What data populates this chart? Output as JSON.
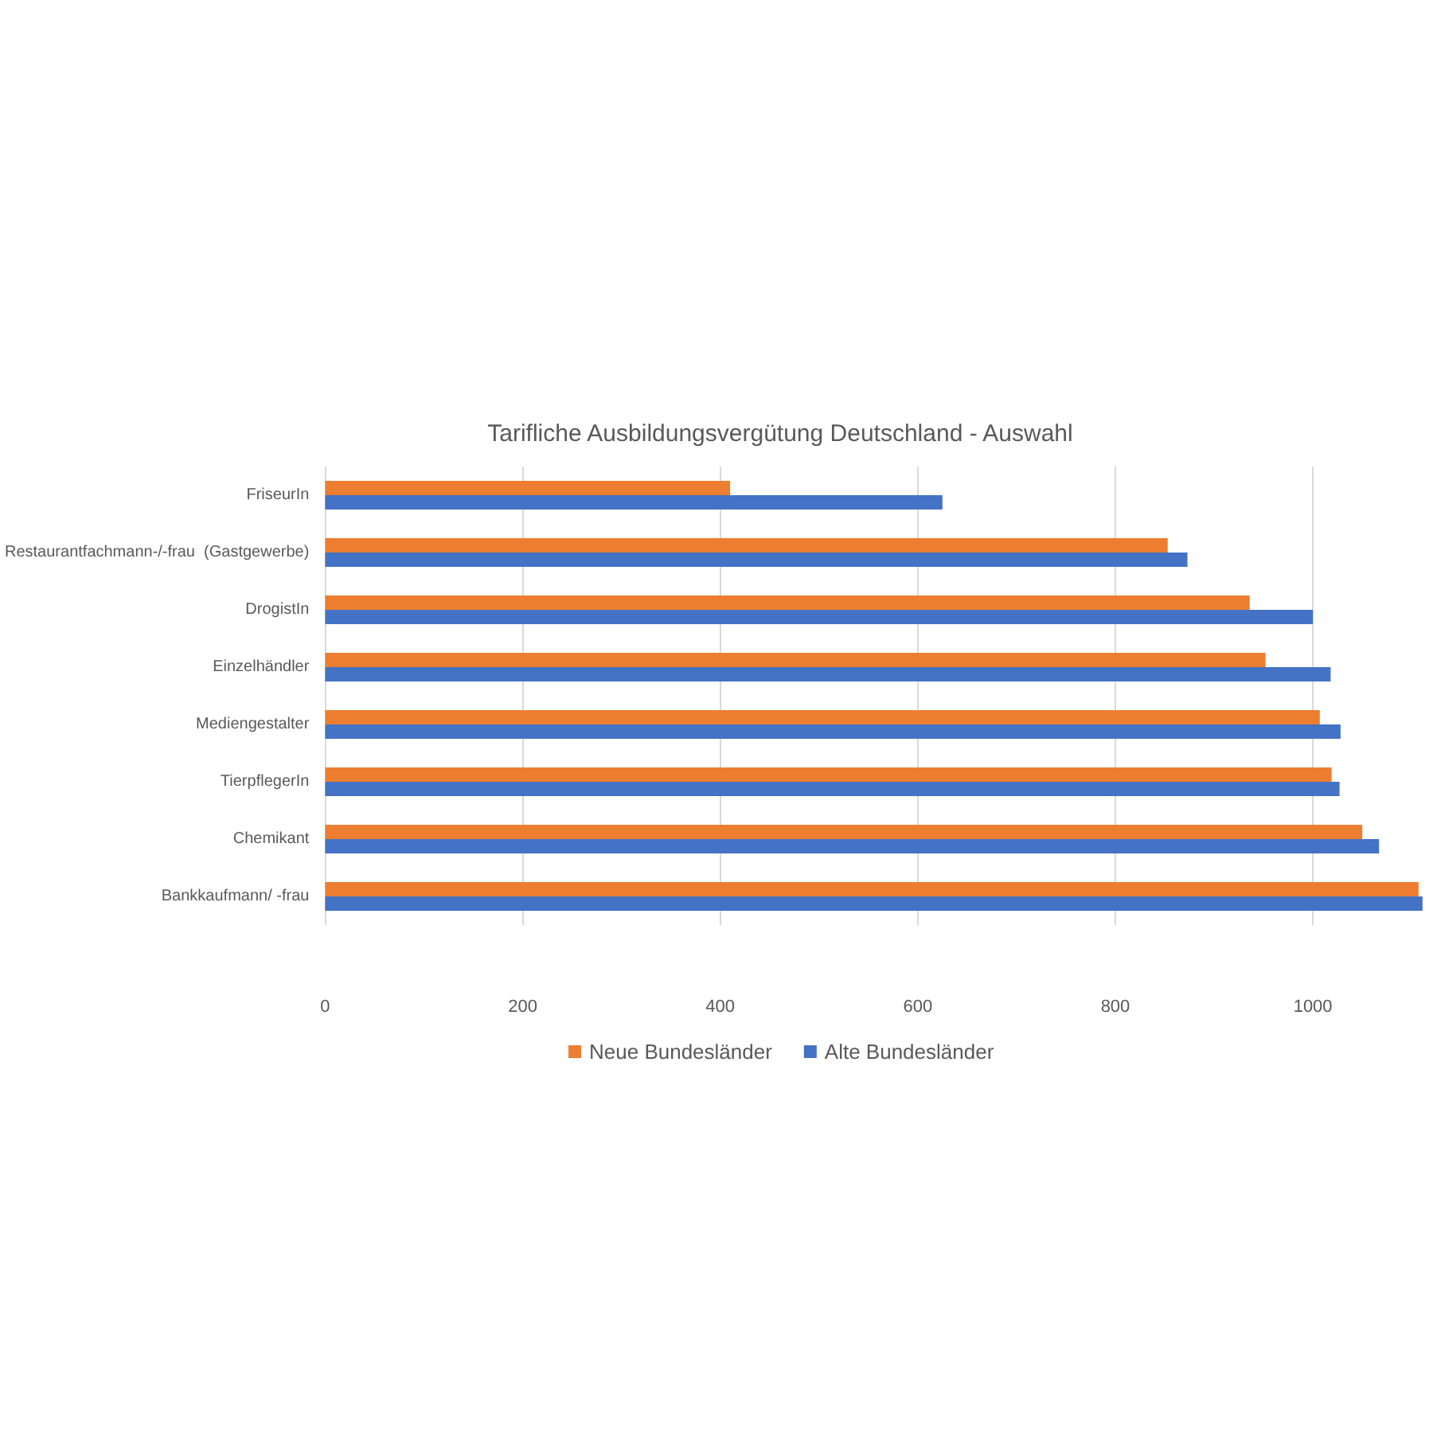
{
  "chart_data": {
    "type": "bar",
    "orientation": "horizontal",
    "title": "Tarifliche Ausbildungsvergütung Deutschland - Auswahl",
    "categories": [
      "FriseurIn",
      "Restaurantfachmann-/-frau  (Gastgewerbe)",
      "DrogistIn",
      "Einzelhändler",
      "Mediengestalter",
      "TierpflegerIn",
      "Chemikant",
      "Bankkaufmann/ -frau"
    ],
    "series": [
      {
        "name": "Neue Bundesländer",
        "color": "#ed7d31",
        "values": [
          410,
          853,
          936,
          952,
          1007,
          1019,
          1050,
          1107
        ]
      },
      {
        "name": "Alte Bundesländer",
        "color": "#4472c4",
        "values": [
          625,
          873,
          1000,
          1018,
          1028,
          1027,
          1067,
          1111
        ]
      }
    ],
    "xlim": [
      0,
      1120
    ],
    "xticks": [
      0,
      200,
      400,
      600,
      800,
      1000
    ],
    "grid": "x",
    "legend": "bottom"
  }
}
